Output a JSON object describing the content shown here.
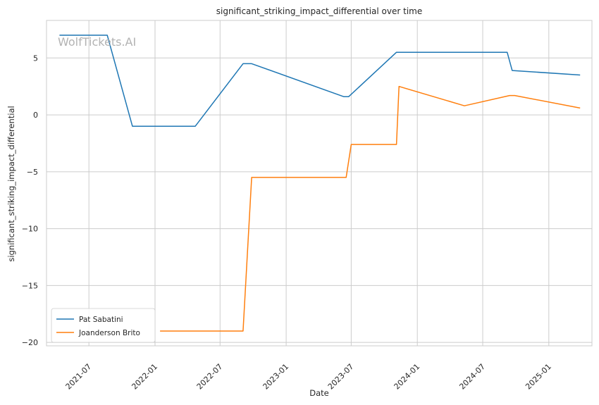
{
  "watermark": "WolfTickets.AI",
  "colors": {
    "background": "#ffffff",
    "grid": "#cccccc",
    "frame": "#cccccc",
    "text": "#262626",
    "watermark": "#b3b3b3"
  },
  "chart_data": {
    "type": "line",
    "title": "significant_striking_impact_differential over time",
    "xlabel": "Date",
    "ylabel": "significant_striking_impact_differential",
    "x_is_date": true,
    "xlim": [
      "2021-03-05",
      "2025-05-01"
    ],
    "ylim": [
      -20.3,
      8.3
    ],
    "x_ticks": [
      "2021-07-01",
      "2022-01-01",
      "2022-07-01",
      "2023-01-01",
      "2023-07-01",
      "2024-01-01",
      "2024-07-01",
      "2025-01-01"
    ],
    "x_tick_labels": [
      "2021-07",
      "2022-01",
      "2022-07",
      "2023-01",
      "2023-07",
      "2024-01",
      "2024-07",
      "2025-01"
    ],
    "y_ticks": [
      -20,
      -15,
      -10,
      -5,
      0,
      5
    ],
    "y_tick_labels": [
      "−20",
      "−15",
      "−10",
      "−5",
      "0",
      "5"
    ],
    "grid": true,
    "legend_position": "lower-left",
    "series": [
      {
        "name": "Pat Sabatini",
        "color": "#1f77b4",
        "points": [
          [
            "2021-04-10",
            7.0
          ],
          [
            "2021-08-21",
            7.0
          ],
          [
            "2021-10-30",
            -1.0
          ],
          [
            "2022-04-23",
            -1.0
          ],
          [
            "2022-09-03",
            4.5
          ],
          [
            "2022-09-27",
            4.5
          ],
          [
            "2023-06-10",
            1.6
          ],
          [
            "2023-06-24",
            1.6
          ],
          [
            "2023-11-04",
            5.5
          ],
          [
            "2024-09-07",
            5.5
          ],
          [
            "2024-09-21",
            3.9
          ],
          [
            "2025-03-29",
            3.5
          ]
        ]
      },
      {
        "name": "Joanderson Brito",
        "color": "#ff7f0e",
        "points": [
          [
            "2022-01-15",
            -19.0
          ],
          [
            "2022-09-03",
            -19.0
          ],
          [
            "2022-09-27",
            -5.5
          ],
          [
            "2023-06-17",
            -5.5
          ],
          [
            "2023-07-01",
            -2.6
          ],
          [
            "2023-11-04",
            -2.6
          ],
          [
            "2023-11-11",
            2.5
          ],
          [
            "2024-05-11",
            0.8
          ],
          [
            "2024-09-14",
            1.7
          ],
          [
            "2024-09-28",
            1.7
          ],
          [
            "2025-03-29",
            0.6
          ]
        ]
      }
    ]
  }
}
